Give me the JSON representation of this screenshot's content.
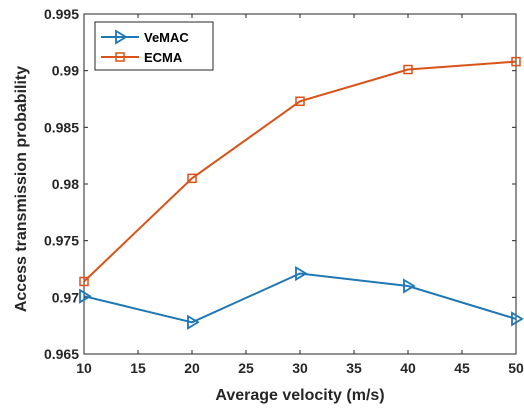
{
  "chart_data": {
    "type": "line",
    "title": "",
    "xlabel": "Average velocity (m/s)",
    "ylabel": "Access transmission probability",
    "xlim": [
      10,
      50
    ],
    "ylim": [
      0.965,
      0.995
    ],
    "xticks": [
      "10",
      "15",
      "20",
      "25",
      "30",
      "35",
      "40",
      "45",
      "50"
    ],
    "xtick_values": [
      10,
      15,
      20,
      25,
      30,
      35,
      40,
      45,
      50
    ],
    "yticks": [
      "0.965",
      "0.97",
      "0.975",
      "0.98",
      "0.985",
      "0.99",
      "0.995"
    ],
    "ytick_values": [
      0.965,
      0.97,
      0.975,
      0.98,
      0.985,
      0.99,
      0.995
    ],
    "grid": false,
    "legend_position": "top-left",
    "series": [
      {
        "name": "VeMAC",
        "color": "#1f77b4",
        "marker": "triangle-right",
        "x": [
          10,
          20,
          30,
          40,
          50
        ],
        "y": [
          0.9701,
          0.9678,
          0.9721,
          0.971,
          0.9681
        ]
      },
      {
        "name": "ECMA",
        "color": "#d95319",
        "marker": "square",
        "x": [
          10,
          20,
          30,
          40,
          50
        ],
        "y": [
          0.9714,
          0.9805,
          0.9873,
          0.9901,
          0.9908
        ]
      }
    ]
  }
}
